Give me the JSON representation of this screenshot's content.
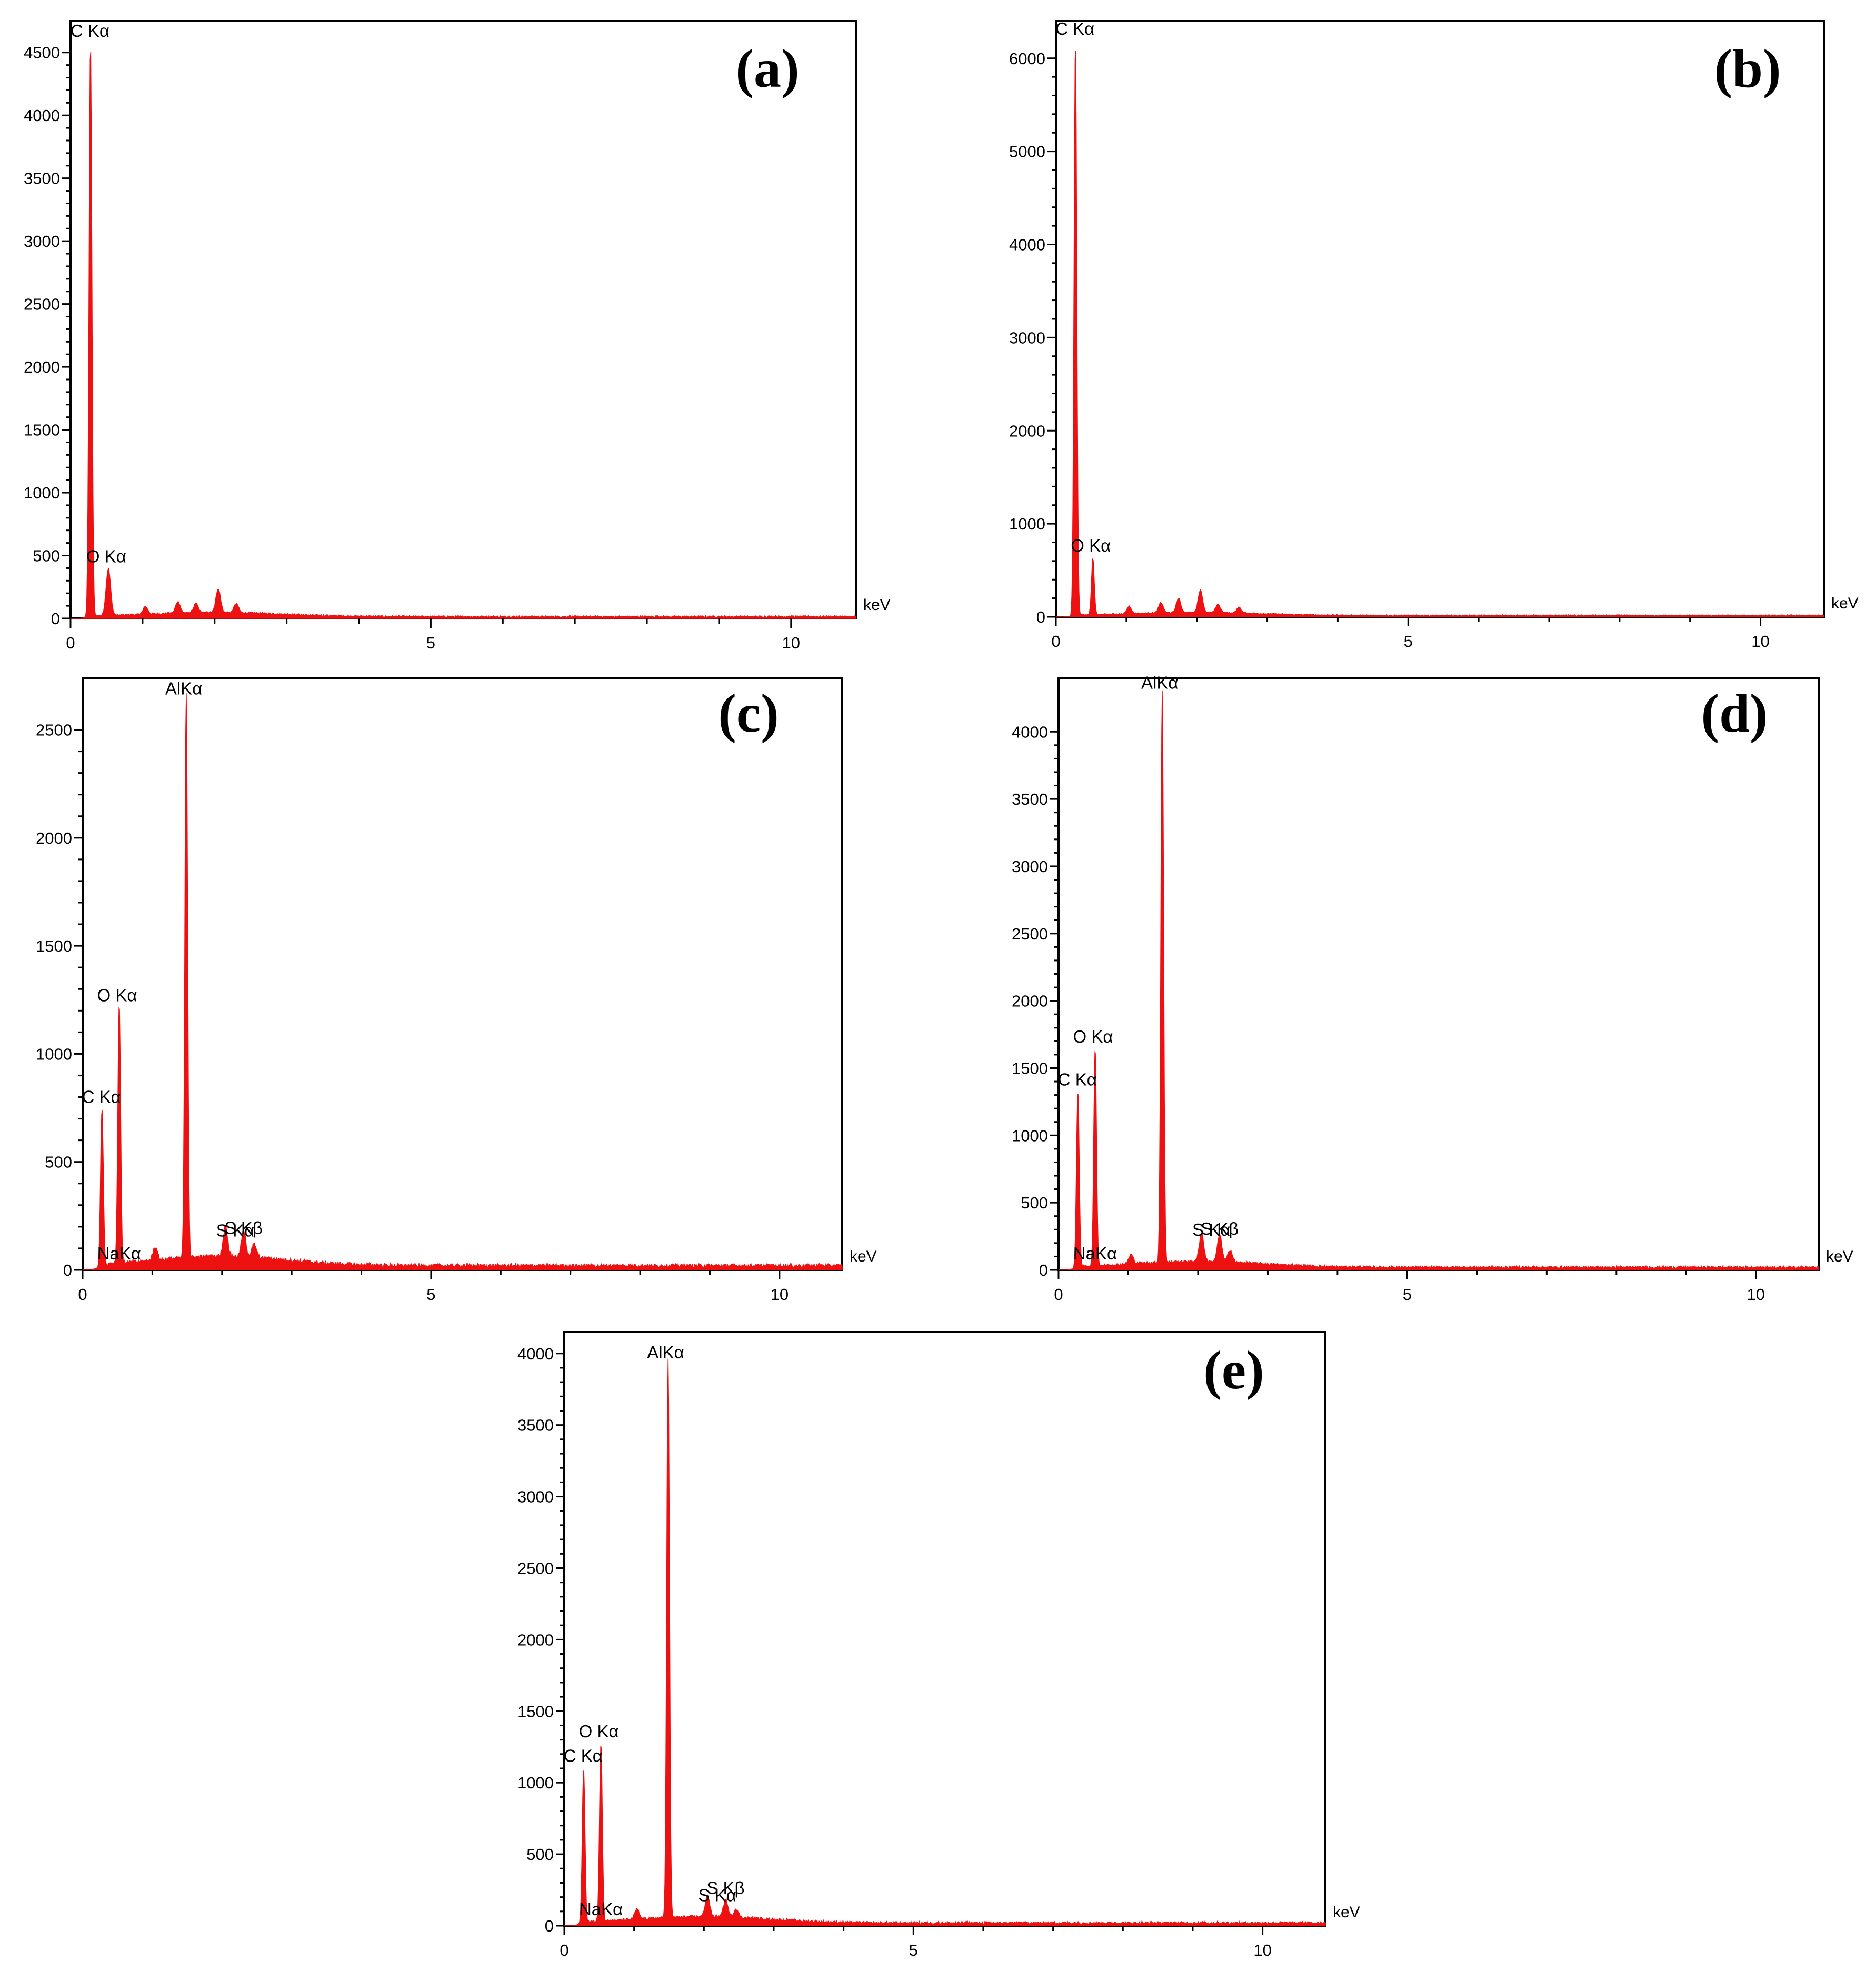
{
  "chart_data": [
    {
      "type": "area",
      "panel_label": "(a)",
      "x_unit": "keV",
      "xlim": [
        0,
        10.9
      ],
      "ylim": [
        0,
        4750
      ],
      "x_ticks": [
        0,
        5,
        10
      ],
      "y_ticks": [
        0,
        500,
        1000,
        1500,
        2000,
        2500,
        3000,
        3500,
        4000,
        4500
      ],
      "color": "#ee1111",
      "background": 15,
      "peaks": [
        {
          "label": "C Kα",
          "x": 0.277,
          "y": 4550
        },
        {
          "label": "O Kα",
          "x": 0.525,
          "y": 370
        }
      ],
      "minor_features": [
        {
          "x": 1.04,
          "y": 60
        },
        {
          "x": 1.49,
          "y": 90
        },
        {
          "x": 1.74,
          "y": 70
        },
        {
          "x": 2.05,
          "y": 190
        },
        {
          "x": 2.3,
          "y": 70
        }
      ]
    },
    {
      "type": "area",
      "panel_label": "(b)",
      "x_unit": "keV",
      "xlim": [
        0,
        10.9
      ],
      "ylim": [
        0,
        6400
      ],
      "x_ticks": [
        0,
        5,
        10
      ],
      "y_ticks": [
        0,
        1000,
        2000,
        3000,
        4000,
        5000,
        6000
      ],
      "color": "#ee1111",
      "background": 15,
      "peaks": [
        {
          "label": "C Kα",
          "x": 0.277,
          "y": 6150
        },
        {
          "label": "O Kα",
          "x": 0.525,
          "y": 600
        }
      ],
      "minor_features": [
        {
          "x": 1.04,
          "y": 80
        },
        {
          "x": 1.49,
          "y": 110
        },
        {
          "x": 1.74,
          "y": 150
        },
        {
          "x": 2.05,
          "y": 240
        },
        {
          "x": 2.3,
          "y": 90
        },
        {
          "x": 2.6,
          "y": 60
        }
      ]
    },
    {
      "type": "area",
      "panel_label": "(c)",
      "x_unit": "keV",
      "xlim": [
        0,
        10.9
      ],
      "ylim": [
        0,
        2740
      ],
      "x_ticks": [
        0,
        5,
        10
      ],
      "y_ticks": [
        0,
        500,
        1000,
        1500,
        2000,
        2500
      ],
      "color": "#ee1111",
      "background": 20,
      "peaks": [
        {
          "label": "C Kα",
          "x": 0.277,
          "y": 730
        },
        {
          "label": "O Kα",
          "x": 0.525,
          "y": 1200
        },
        {
          "label": "NaKα",
          "x": 1.04,
          "y": 60
        },
        {
          "label": "AlKα",
          "x": 1.487,
          "y": 2620
        },
        {
          "label": "S Kα",
          "x": 2.31,
          "y": 120
        },
        {
          "label": "S Kβ",
          "x": 2.46,
          "y": 60
        }
      ],
      "minor_features": [
        {
          "x": 2.05,
          "y": 140
        }
      ]
    },
    {
      "type": "area",
      "panel_label": "(d)",
      "x_unit": "keV",
      "xlim": [
        0,
        10.9
      ],
      "ylim": [
        0,
        4400
      ],
      "x_ticks": [
        0,
        5,
        10
      ],
      "y_ticks": [
        0,
        500,
        1000,
        1500,
        2000,
        2500,
        3000,
        3500,
        4000
      ],
      "color": "#ee1111",
      "background": 20,
      "peaks": [
        {
          "label": "C Kα",
          "x": 0.277,
          "y": 1300
        },
        {
          "label": "O Kα",
          "x": 0.525,
          "y": 1620
        },
        {
          "label": "NaKα",
          "x": 1.04,
          "y": 70
        },
        {
          "label": "AlKα",
          "x": 1.487,
          "y": 4250
        },
        {
          "label": "S Kα",
          "x": 2.31,
          "y": 200
        },
        {
          "label": "S Kβ",
          "x": 2.46,
          "y": 90
        }
      ],
      "minor_features": [
        {
          "x": 2.05,
          "y": 210
        }
      ]
    },
    {
      "type": "area",
      "panel_label": "(e)",
      "x_unit": "keV",
      "xlim": [
        0,
        10.9
      ],
      "ylim": [
        0,
        4150
      ],
      "x_ticks": [
        0,
        5,
        10
      ],
      "y_ticks": [
        0,
        500,
        1000,
        1500,
        2000,
        2500,
        3000,
        3500,
        4000
      ],
      "color": "#ee1111",
      "background": 20,
      "peaks": [
        {
          "label": "C Kα",
          "x": 0.277,
          "y": 1080
        },
        {
          "label": "O Kα",
          "x": 0.525,
          "y": 1250
        },
        {
          "label": "NaKα",
          "x": 1.04,
          "y": 70
        },
        {
          "label": "AlKα",
          "x": 1.487,
          "y": 3900
        },
        {
          "label": "S Kα",
          "x": 2.31,
          "y": 120
        },
        {
          "label": "S Kβ",
          "x": 2.46,
          "y": 60
        }
      ],
      "minor_features": [
        {
          "x": 2.05,
          "y": 150
        }
      ]
    }
  ]
}
